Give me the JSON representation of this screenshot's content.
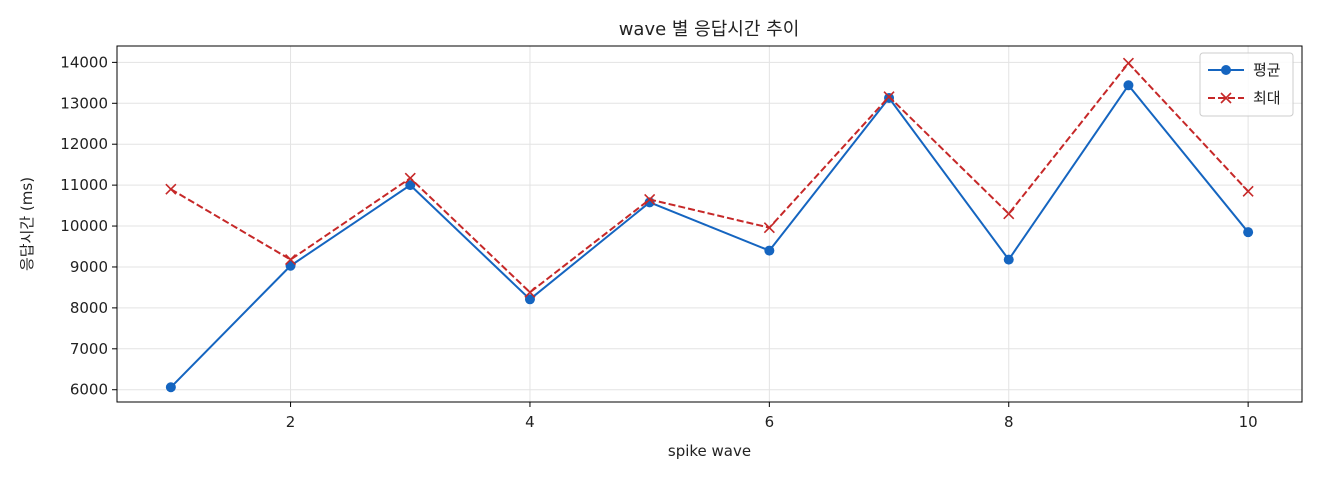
{
  "chart_data": {
    "type": "line",
    "title": "wave 별 응답시간 추이",
    "xlabel": "spike wave",
    "ylabel": "응답시간 (ms)",
    "x": [
      1,
      2,
      3,
      4,
      5,
      6,
      7,
      8,
      9,
      10
    ],
    "xlim": [
      0.55,
      10.45
    ],
    "ylim": [
      5700,
      14400
    ],
    "xticks": [
      2,
      4,
      6,
      8,
      10
    ],
    "yticks": [
      6000,
      7000,
      8000,
      9000,
      10000,
      11000,
      12000,
      13000,
      14000
    ],
    "grid": true,
    "legend_position": "top-right",
    "series": [
      {
        "name": "평균",
        "color": "#1565c0",
        "line_style": "solid",
        "marker": "circle",
        "values": [
          6060,
          9030,
          11000,
          8210,
          10580,
          9400,
          13130,
          9180,
          13440,
          9850
        ]
      },
      {
        "name": "최대",
        "color": "#c62828",
        "line_style": "dashed",
        "marker": "x",
        "values": [
          10900,
          9180,
          11170,
          8380,
          10650,
          9960,
          13160,
          10300,
          13980,
          10850
        ]
      }
    ]
  }
}
